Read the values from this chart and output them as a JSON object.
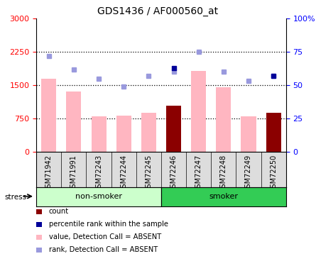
{
  "title": "GDS1436 / AF000560_at",
  "samples": [
    "GSM71942",
    "GSM71991",
    "GSM72243",
    "GSM72244",
    "GSM72245",
    "GSM72246",
    "GSM72247",
    "GSM72248",
    "GSM72249",
    "GSM72250"
  ],
  "value_bars": [
    1650,
    1350,
    800,
    820,
    870,
    0,
    1820,
    1460,
    790,
    0
  ],
  "count_bars": [
    0,
    0,
    0,
    0,
    0,
    1040,
    0,
    0,
    0,
    870
  ],
  "count_nonzero": [
    false,
    false,
    false,
    false,
    false,
    true,
    false,
    false,
    false,
    true
  ],
  "rank_dots_percent": [
    72,
    62,
    55,
    49,
    57,
    60,
    75,
    60,
    53,
    57
  ],
  "percentile_dots_percent": [
    null,
    null,
    null,
    null,
    null,
    63,
    null,
    null,
    null,
    57
  ],
  "left_ylim": [
    0,
    3000
  ],
  "right_ylim": [
    0,
    100
  ],
  "left_yticks": [
    0,
    750,
    1500,
    2250,
    3000
  ],
  "right_yticks": [
    0,
    25,
    50,
    75,
    100
  ],
  "bar_color_absent": "#FFB6C1",
  "bar_color_count": "#8B0000",
  "dot_color_rank_absent": "#9999DD",
  "dot_color_percentile": "#000099",
  "color_nonsmoker": "#CCFFCC",
  "color_smoker": "#33CC55",
  "stress_label": "stress",
  "legend_items": [
    {
      "label": "count",
      "color": "#8B0000"
    },
    {
      "label": "percentile rank within the sample",
      "color": "#000099"
    },
    {
      "label": "value, Detection Call = ABSENT",
      "color": "#FFB6C1"
    },
    {
      "label": "rank, Detection Call = ABSENT",
      "color": "#9999DD"
    }
  ]
}
